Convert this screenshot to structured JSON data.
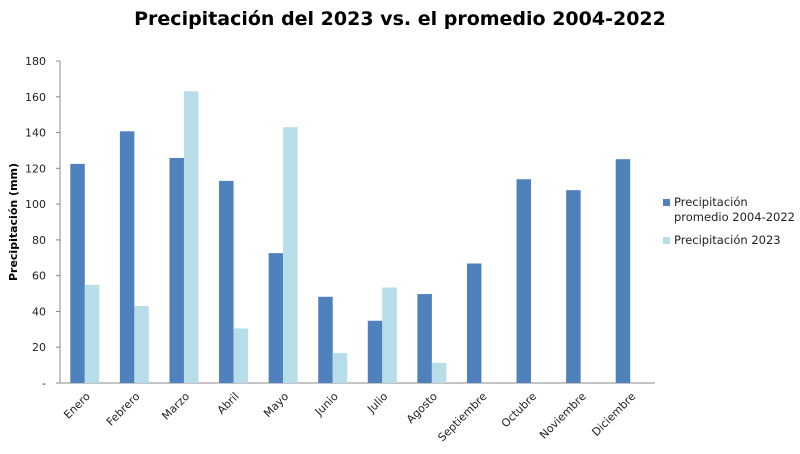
{
  "chart_data": {
    "type": "bar",
    "title": "Precipitación del 2023 vs. el promedio 2004-2022",
    "xlabel": "",
    "ylabel": "Precipitación (mm)",
    "ylim": [
      0,
      180
    ],
    "yticks": [
      "-",
      "20",
      "40",
      "60",
      "80",
      "100",
      "120",
      "140",
      "160",
      "180"
    ],
    "grid": false,
    "legend_position": "right",
    "categories": [
      "Enero",
      "Febrero",
      "Marzo",
      "Abril",
      "Mayo",
      "Junio",
      "Julio",
      "Agosto",
      "Septiembre",
      "Octubre",
      "Noviembre",
      "Diciembre"
    ],
    "series": [
      {
        "name": "Precipitación promedio 2004-2022",
        "color": "#4f81bd",
        "values": [
          122.5,
          140.7,
          125.8,
          113,
          72.6,
          48.2,
          34.8,
          49.7,
          66.8,
          113.9,
          107.8,
          125.1
        ]
      },
      {
        "name": "Precipitación 2023",
        "color": "#b7dde8",
        "values": [
          54.9,
          43,
          163.1,
          30.5,
          143,
          16.8,
          53.4,
          11.2,
          null,
          null,
          null,
          null
        ]
      }
    ]
  }
}
